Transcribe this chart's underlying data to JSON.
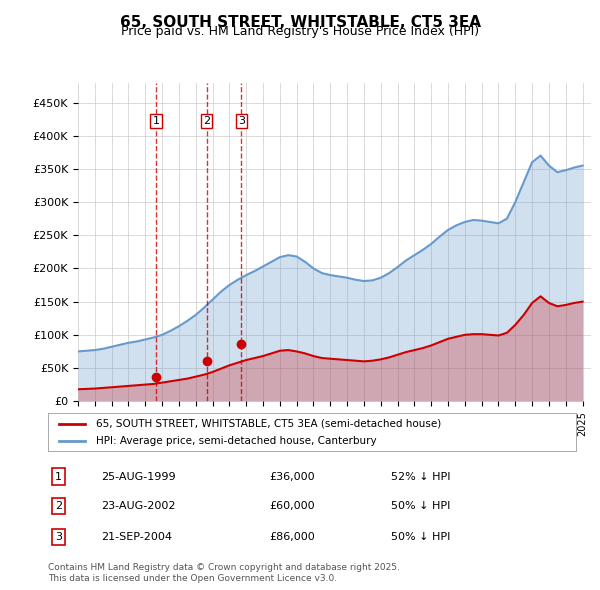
{
  "title": "65, SOUTH STREET, WHITSTABLE, CT5 3EA",
  "subtitle": "Price paid vs. HM Land Registry's House Price Index (HPI)",
  "legend_label_red": "65, SOUTH STREET, WHITSTABLE, CT5 3EA (semi-detached house)",
  "legend_label_blue": "HPI: Average price, semi-detached house, Canterbury",
  "footer": "Contains HM Land Registry data © Crown copyright and database right 2025.\nThis data is licensed under the Open Government Licence v3.0.",
  "transactions": [
    {
      "num": 1,
      "date": "25-AUG-1999",
      "price": 36000,
      "hpi_pct": "52% ↓ HPI",
      "x_year": 1999.65
    },
    {
      "num": 2,
      "date": "23-AUG-2002",
      "price": 60000,
      "hpi_pct": "50% ↓ HPI",
      "x_year": 2002.65
    },
    {
      "num": 3,
      "date": "21-SEP-2004",
      "price": 86000,
      "hpi_pct": "50% ↓ HPI",
      "x_year": 2004.72
    }
  ],
  "red_color": "#cc0000",
  "blue_color": "#6699cc",
  "vline_color": "#cc0000",
  "background_color": "#ffffff",
  "grid_color": "#cccccc",
  "ylim": [
    0,
    480000
  ],
  "xlim_start": 1995.0,
  "xlim_end": 2025.5,
  "hpi_x": [
    1995.0,
    1995.5,
    1996.0,
    1996.5,
    1997.0,
    1997.5,
    1998.0,
    1998.5,
    1999.0,
    1999.5,
    2000.0,
    2000.5,
    2001.0,
    2001.5,
    2002.0,
    2002.5,
    2003.0,
    2003.5,
    2004.0,
    2004.5,
    2005.0,
    2005.5,
    2006.0,
    2006.5,
    2007.0,
    2007.5,
    2008.0,
    2008.5,
    2009.0,
    2009.5,
    2010.0,
    2010.5,
    2011.0,
    2011.5,
    2012.0,
    2012.5,
    2013.0,
    2013.5,
    2014.0,
    2014.5,
    2015.0,
    2015.5,
    2016.0,
    2016.5,
    2017.0,
    2017.5,
    2018.0,
    2018.5,
    2019.0,
    2019.5,
    2020.0,
    2020.5,
    2021.0,
    2021.5,
    2022.0,
    2022.5,
    2023.0,
    2023.5,
    2024.0,
    2024.5,
    2025.0
  ],
  "hpi_y": [
    75000,
    76000,
    77000,
    79000,
    82000,
    85000,
    88000,
    90000,
    93000,
    96000,
    100000,
    106000,
    113000,
    121000,
    130000,
    141000,
    153000,
    165000,
    175000,
    183000,
    190000,
    196000,
    203000,
    210000,
    217000,
    220000,
    218000,
    210000,
    200000,
    193000,
    190000,
    188000,
    186000,
    183000,
    181000,
    182000,
    186000,
    193000,
    202000,
    212000,
    220000,
    228000,
    237000,
    248000,
    258000,
    265000,
    270000,
    273000,
    272000,
    270000,
    268000,
    275000,
    300000,
    330000,
    360000,
    370000,
    355000,
    345000,
    348000,
    352000,
    355000
  ],
  "red_x": [
    1995.0,
    1995.5,
    1996.0,
    1996.5,
    1997.0,
    1997.5,
    1998.0,
    1998.5,
    1999.0,
    1999.5,
    2000.0,
    2000.5,
    2001.0,
    2001.5,
    2002.0,
    2002.5,
    2003.0,
    2003.5,
    2004.0,
    2004.5,
    2005.0,
    2005.5,
    2006.0,
    2006.5,
    2007.0,
    2007.5,
    2008.0,
    2008.5,
    2009.0,
    2009.5,
    2010.0,
    2010.5,
    2011.0,
    2011.5,
    2012.0,
    2012.5,
    2013.0,
    2013.5,
    2014.0,
    2014.5,
    2015.0,
    2015.5,
    2016.0,
    2016.5,
    2017.0,
    2017.5,
    2018.0,
    2018.5,
    2019.0,
    2019.5,
    2020.0,
    2020.5,
    2021.0,
    2021.5,
    2022.0,
    2022.5,
    2023.0,
    2023.5,
    2024.0,
    2024.5,
    2025.0
  ],
  "red_y": [
    18000,
    18500,
    19000,
    20000,
    21000,
    22000,
    23000,
    24000,
    25000,
    26000,
    28000,
    30000,
    32000,
    34000,
    37000,
    40000,
    44000,
    49000,
    54000,
    58000,
    62000,
    65000,
    68000,
    72000,
    76000,
    77000,
    75000,
    72000,
    68000,
    65000,
    64000,
    63000,
    62000,
    61000,
    60000,
    61000,
    63000,
    66000,
    70000,
    74000,
    77000,
    80000,
    84000,
    89000,
    94000,
    97000,
    100000,
    101000,
    101000,
    100000,
    99000,
    103000,
    115000,
    130000,
    148000,
    158000,
    148000,
    143000,
    145000,
    148000,
    150000
  ]
}
